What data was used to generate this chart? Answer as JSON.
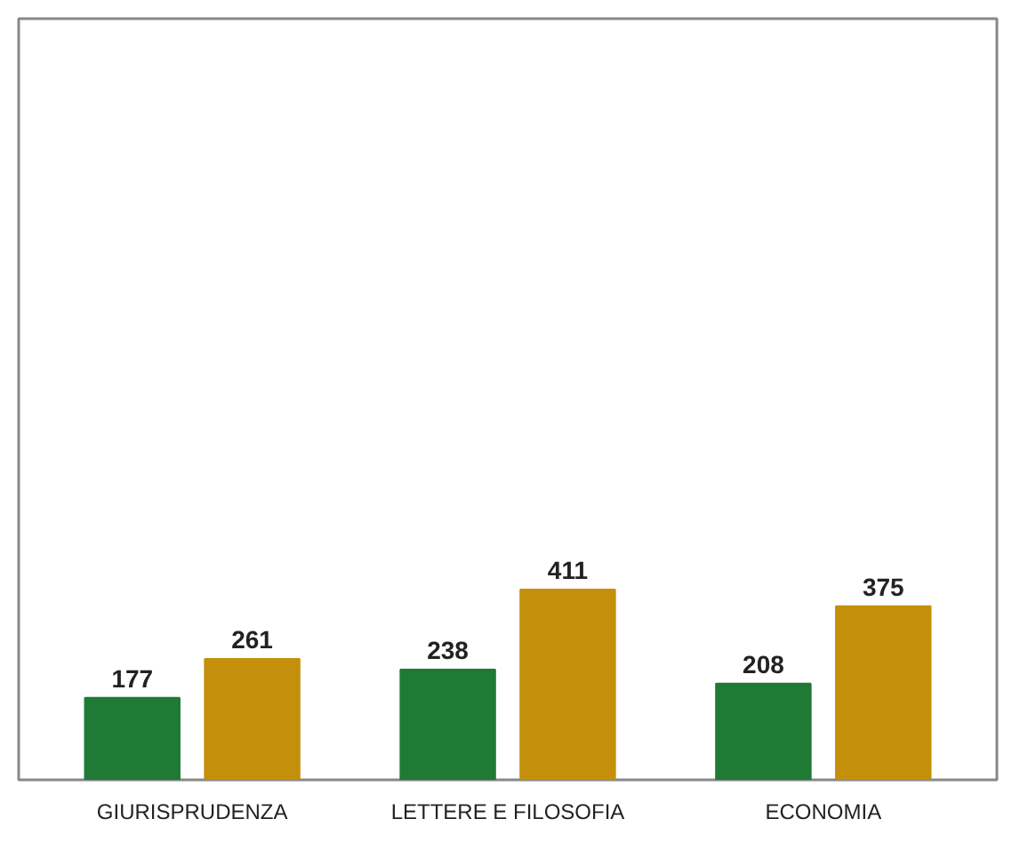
{
  "chart_data": {
    "type": "bar",
    "categories": [
      "GIURISPRUDENZA",
      "LETTERE E FILOSOFIA",
      "ECONOMIA"
    ],
    "series": [
      {
        "color": "#1f7a35",
        "values": [
          177,
          238,
          208
        ]
      },
      {
        "color": "#c4900c",
        "values": [
          261,
          411,
          375
        ]
      }
    ],
    "data_labels": true,
    "grid": false
  }
}
